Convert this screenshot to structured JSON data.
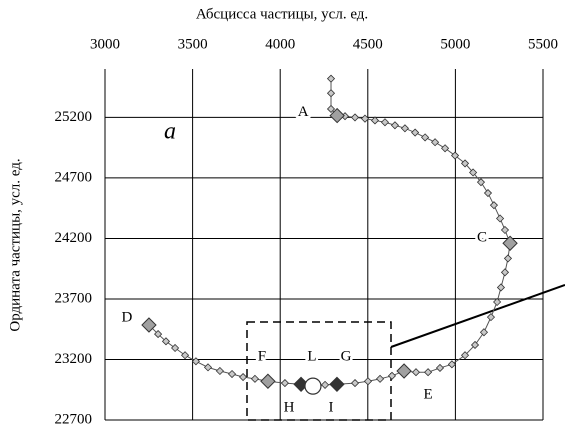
{
  "chart_data": {
    "type": "line",
    "x_label": "Абсцисса частицы, усл. ед.",
    "y_label": "Ордината частицы, усл. ед.",
    "xlim": [
      3000,
      5500
    ],
    "xticks": [
      3000,
      3500,
      4000,
      4500,
      5000,
      5500
    ],
    "ylim": [
      22700,
      25600
    ],
    "yticks": [
      22700,
      23200,
      23700,
      24200,
      24700,
      25200
    ],
    "grid": true,
    "x_axis_position": "top",
    "line_color": "#555555",
    "marker_color": "#c8c8c8",
    "x": [
      4290,
      4290,
      4290,
      4325,
      4370,
      4427,
      4484,
      4541,
      4598,
      4655,
      4712,
      4770,
      4827,
      4884,
      4941,
      4998,
      5055,
      5101,
      5146,
      5186,
      5220,
      5255,
      5283,
      5312,
      5300,
      5283,
      5260,
      5238,
      5203,
      5163,
      5112,
      5055,
      4980,
      4912,
      4844,
      4775,
      4707,
      4638,
      4570,
      4501,
      4427,
      4324,
      4256,
      4187,
      4119,
      4027,
      3930,
      3856,
      3788,
      3725,
      3656,
      3588,
      3519,
      3457,
      3400,
      3348,
      3303,
      3251
    ],
    "y": [
      25520,
      25400,
      25270,
      25215,
      25210,
      25200,
      25190,
      25175,
      25160,
      25135,
      25110,
      25075,
      25035,
      24995,
      24945,
      24885,
      24820,
      24745,
      24665,
      24575,
      24475,
      24365,
      24270,
      24160,
      24035,
      23920,
      23795,
      23675,
      23550,
      23425,
      23320,
      23235,
      23160,
      23130,
      23095,
      23095,
      23105,
      23065,
      23040,
      23020,
      23005,
      22995,
      22990,
      22980,
      22995,
      23005,
      23020,
      23040,
      23055,
      23080,
      23105,
      23135,
      23185,
      23235,
      23295,
      23350,
      23410,
      23485
    ],
    "key_points": [
      {
        "label": "A",
        "x": 4325,
        "y": 25215,
        "color": "#a0a0a0"
      },
      {
        "label": "C",
        "x": 5312,
        "y": 24160,
        "color": "#a0a0a0"
      },
      {
        "label": "D",
        "x": 3251,
        "y": 23485,
        "color": "#a0a0a0"
      },
      {
        "label": "E",
        "x": 4707,
        "y": 23105,
        "color": "#a0a0a0"
      },
      {
        "label": "F",
        "x": 3930,
        "y": 23020,
        "color": "#a0a0a0"
      },
      {
        "label": "H",
        "x": 4119,
        "y": 22995,
        "color": "#333333"
      },
      {
        "label": "I",
        "x": 4324,
        "y": 22995,
        "color": "#333333"
      }
    ],
    "circle_point": {
      "x": 4187,
      "y": 22980
    },
    "annotations": [
      "a",
      "L",
      "G"
    ]
  }
}
